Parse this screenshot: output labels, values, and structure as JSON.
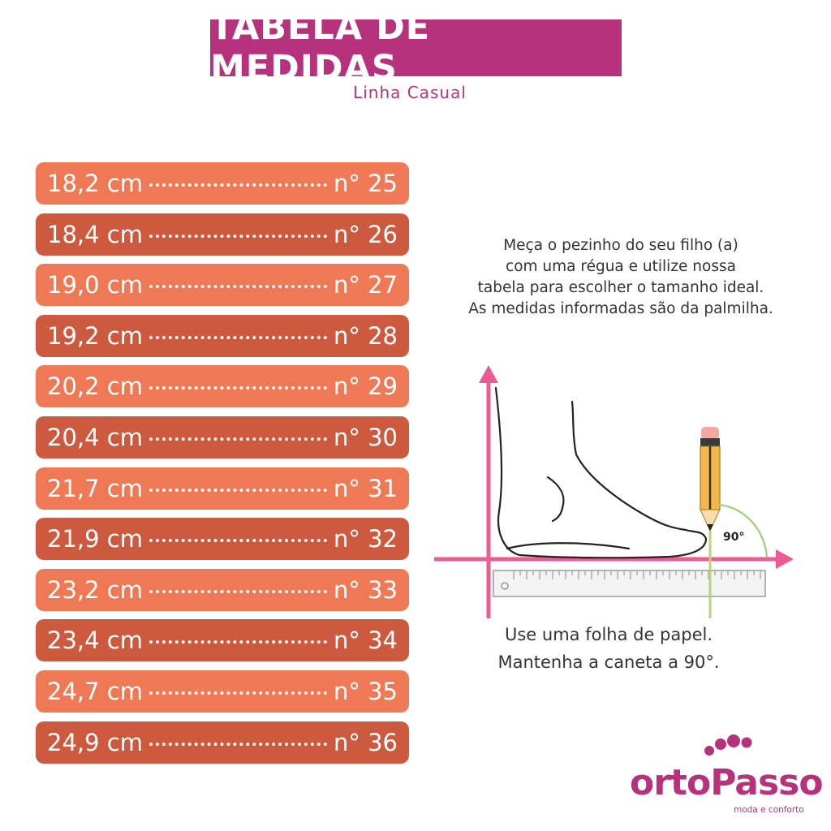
{
  "header": {
    "title": "TABELA DE MEDIDAS",
    "subtitle": "Linha Casual"
  },
  "sizes": [
    {
      "cm": "18,2 cm",
      "num": "n° 25"
    },
    {
      "cm": "18,4 cm",
      "num": "n° 26"
    },
    {
      "cm": "19,0 cm",
      "num": "n° 27"
    },
    {
      "cm": "19,2 cm",
      "num": "n° 28"
    },
    {
      "cm": "20,2 cm",
      "num": "n° 29"
    },
    {
      "cm": "20,4 cm",
      "num": "n° 30"
    },
    {
      "cm": "21,7 cm",
      "num": "n° 31"
    },
    {
      "cm": "21,9 cm",
      "num": "n° 32"
    },
    {
      "cm": "23,2 cm",
      "num": "n° 33"
    },
    {
      "cm": "23,4 cm",
      "num": "n° 34"
    },
    {
      "cm": "24,7 cm",
      "num": "n° 35"
    },
    {
      "cm": "24,9 cm",
      "num": "n° 36"
    }
  ],
  "instructions": [
    "Meça o pezinho do seu filho (a)",
    "com uma régua e utilize nossa",
    "tabela para escolher o tamanho ideal.",
    "As medidas informadas são da palmilha."
  ],
  "diagram": {
    "angle_label": "90°"
  },
  "caption": {
    "line1": "Use uma folha de papel.",
    "line2": "Mantenha a caneta a 90°."
  },
  "logo": {
    "brand": "ortoPasso",
    "tagline": "moda e conforto"
  },
  "colors": {
    "title_bg": "#b7327c",
    "row_light": "#f07955",
    "row_dark": "#cd5a3e",
    "axis": "#ec5b95"
  }
}
